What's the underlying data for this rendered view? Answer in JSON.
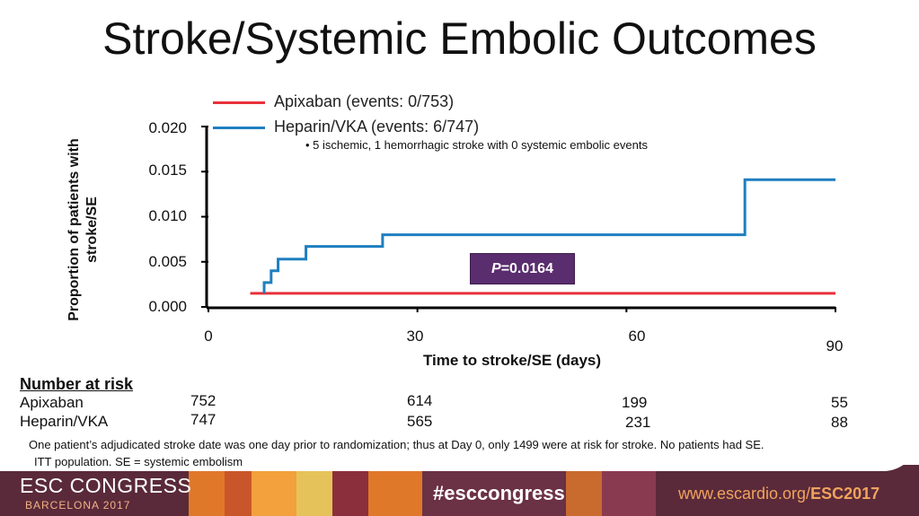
{
  "title": "Stroke/Systemic Embolic Outcomes",
  "legend": [
    {
      "label": "Apixaban (events: 0/753)",
      "color": "#e8303a"
    },
    {
      "label": "Heparin/VKA (events: 6/747)",
      "color": "#1f7fc0"
    }
  ],
  "note": "•    5 ischemic, 1 hemorrhagic stroke with 0 systemic embolic events",
  "p_value": {
    "prefix": "P",
    "value": "=0.0164"
  },
  "chart_data": {
    "type": "line",
    "title": "",
    "xlabel": "Time to stroke/SE (days)",
    "ylabel": "Proportion of patients with stroke/SE",
    "xlim": [
      0,
      90
    ],
    "ylim": [
      0,
      0.02
    ],
    "x_ticks": [
      "0",
      "30",
      "60",
      "90"
    ],
    "y_ticks": [
      "0.020",
      "0.015",
      "0.010",
      "0.005",
      "0.000"
    ],
    "series": [
      {
        "name": "Apixaban",
        "color": "#e8303a",
        "x": [
          6,
          90
        ],
        "y": [
          0.0015,
          0.0015
        ]
      },
      {
        "name": "Heparin/VKA",
        "color": "#1f7fc0",
        "x": [
          8,
          8,
          9,
          9,
          10,
          10,
          14,
          14,
          25,
          25,
          77,
          77,
          90
        ],
        "y": [
          0.0015,
          0.0027,
          0.0027,
          0.004,
          0.004,
          0.0053,
          0.0053,
          0.0067,
          0.0067,
          0.008,
          0.008,
          0.0141,
          0.0141
        ]
      }
    ]
  },
  "risk_table": {
    "heading": "Number at risk",
    "rows": [
      {
        "label": "Apixaban",
        "values": [
          "752",
          "614",
          "199",
          "55"
        ]
      },
      {
        "label": "Heparin/VKA",
        "values": [
          "747",
          "565",
          "231",
          "88"
        ]
      }
    ]
  },
  "footnotes": [
    "One patient’s adjudicated stroke date was one day prior to randomization; thus at Day 0, only 1499 were at risk for stroke. No patients had SE.",
    "ITT population.  SE = systemic embolism"
  ],
  "banner": {
    "congress": "ESC CONGRESS",
    "city": "BARCELONA 2017",
    "hashtag": "#esccongress",
    "url_prefix": "www.escardio.org/",
    "url_suffix": "ESC2017"
  }
}
